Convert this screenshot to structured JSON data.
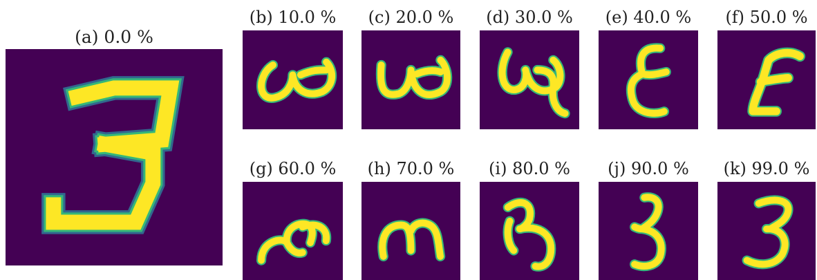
{
  "colors": {
    "background": "#440154",
    "stroke_core": "#fde725",
    "stroke_mid": "#35b779",
    "stroke_edge": "#31688e"
  },
  "panels": [
    {
      "label": "(a) 0.0 %",
      "digit": "3"
    },
    {
      "label": "(b) 10.0 %",
      "digit": "ω"
    },
    {
      "label": "(c) 20.0 %",
      "digit": "ω"
    },
    {
      "label": "(d) 30.0 %",
      "digit": "ω"
    },
    {
      "label": "(e) 40.0 %",
      "digit": "ε"
    },
    {
      "label": "(f) 50.0 %",
      "digit": "E"
    },
    {
      "label": "(g) 60.0 %",
      "digit": "m"
    },
    {
      "label": "(h) 70.0 %",
      "digit": "m"
    },
    {
      "label": "(i) 80.0 %",
      "digit": "3"
    },
    {
      "label": "(j) 90.0 %",
      "digit": "3"
    },
    {
      "label": "(k) 99.0 %",
      "digit": "3"
    }
  ]
}
